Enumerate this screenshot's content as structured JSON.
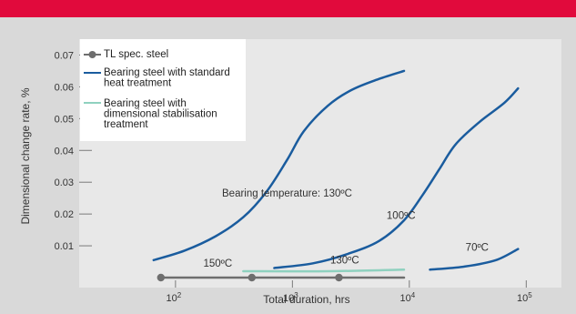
{
  "colors": {
    "banner": "#e10a3c",
    "background": "#d9d9d9",
    "plot_area": "#e8e8e8",
    "gray_series": "#6e6e6e",
    "blue_series": "#1a5c9e",
    "green_series": "#8fd1bf"
  },
  "chart_data": {
    "type": "line",
    "title": "",
    "xlabel": "Total duration, hrs",
    "ylabel": "Dimensional change rate, %",
    "xscale": "log",
    "xlim": [
      15,
      200000
    ],
    "ylim": [
      0,
      0.075
    ],
    "x_ticks": [
      {
        "value": 100,
        "base": "10",
        "exp": "2"
      },
      {
        "value": 1000,
        "base": "10",
        "exp": "3"
      },
      {
        "value": 10000,
        "base": "10",
        "exp": "4"
      },
      {
        "value": 100000,
        "base": "10",
        "exp": "5"
      }
    ],
    "y_ticks": [
      {
        "value": 0.01,
        "label": "0.01"
      },
      {
        "value": 0.02,
        "label": "0.02"
      },
      {
        "value": 0.03,
        "label": "0.03"
      },
      {
        "value": 0.04,
        "label": "0.04"
      },
      {
        "value": 0.05,
        "label": "0.05"
      },
      {
        "value": 0.06,
        "label": "0.06"
      },
      {
        "value": 0.07,
        "label": "0.07"
      }
    ],
    "grid": false,
    "legend_position": "top-left",
    "legend": [
      {
        "label": "TL spec. steel",
        "series_index": 0
      },
      {
        "label": "Bearing steel with standard heat treatment",
        "series_index": 1
      },
      {
        "label": "Bearing steel with dimensional stabilisation treatment",
        "series_index": 4
      }
    ],
    "series": [
      {
        "name": "TL spec. steel",
        "color": "#6e6e6e",
        "markers": true,
        "marker_x": [
          75,
          450,
          2500
        ],
        "x": [
          75,
          9000
        ],
        "y": [
          0,
          0
        ]
      },
      {
        "color": "#1a5c9e",
        "markers": false,
        "x": [
          65,
          120,
          220,
          380,
          600,
          900,
          1250,
          2000,
          3200,
          5500,
          9000
        ],
        "y": [
          0.0055,
          0.0085,
          0.013,
          0.019,
          0.027,
          0.037,
          0.046,
          0.054,
          0.059,
          0.0625,
          0.065
        ]
      },
      {
        "color": "#1a5c9e",
        "markers": false,
        "x": [
          700,
          1500,
          3000,
          5500,
          9000,
          13000,
          18000,
          25000,
          40000,
          65000,
          85000
        ],
        "y": [
          0.003,
          0.0045,
          0.0075,
          0.0115,
          0.018,
          0.026,
          0.034,
          0.042,
          0.049,
          0.055,
          0.0595
        ]
      },
      {
        "color": "#1a5c9e",
        "markers": false,
        "x": [
          15000,
          30000,
          55000,
          85000
        ],
        "y": [
          0.0025,
          0.0035,
          0.0055,
          0.009
        ]
      },
      {
        "color": "#8fd1bf",
        "markers": false,
        "x": [
          380,
          2000,
          9000
        ],
        "y": [
          0.002,
          0.002,
          0.0025
        ]
      }
    ],
    "annotations": [
      {
        "text": "Bearing temperature: 130ºC",
        "x": 900,
        "y": 0.0255
      },
      {
        "text": "100ºC",
        "x": 8500,
        "y": 0.0185
      },
      {
        "text": "150ºC",
        "x": 230,
        "y": 0.0035
      },
      {
        "text": "130ºC",
        "x": 2800,
        "y": 0.0045
      },
      {
        "text": "70ºC",
        "x": 38000,
        "y": 0.0085
      }
    ]
  }
}
